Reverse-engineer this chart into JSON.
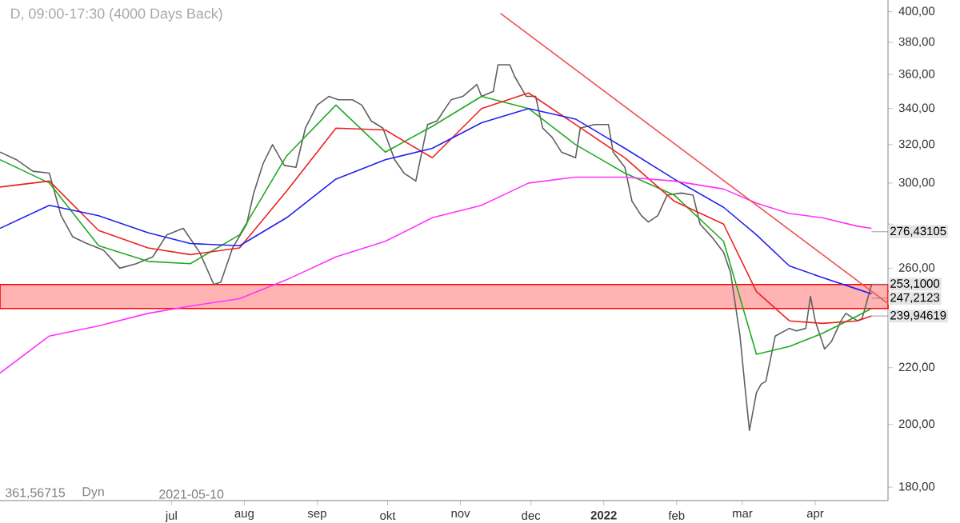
{
  "chart_data": {
    "type": "line",
    "title": "D, 09:00-17:30 (4000 Days Back)",
    "log": "y",
    "grid": false,
    "marker": "none",
    "line_style": "solid",
    "xlim": [
      "2021-04-19",
      "2022-05-02"
    ],
    "ylim": [
      176,
      408
    ],
    "xticks": [
      {
        "value": "2021-07-01",
        "label": "jul"
      },
      {
        "value": "2021-08-01",
        "label": "aug"
      },
      {
        "value": "2021-09-01",
        "label": "sep"
      },
      {
        "value": "2021-10-01",
        "label": "okt"
      },
      {
        "value": "2021-11-01",
        "label": "nov"
      },
      {
        "value": "2021-12-01",
        "label": "dec"
      },
      {
        "value": "2022-01-01",
        "label": "**2022**"
      },
      {
        "value": "2022-02-01",
        "label": "feb"
      },
      {
        "value": "2022-03-01",
        "label": "mar"
      },
      {
        "value": "2022-04-01",
        "label": "apr"
      }
    ],
    "yticks": [
      {
        "value": 180,
        "label": "180,00"
      },
      {
        "value": 200,
        "label": "200,00"
      },
      {
        "value": 220,
        "label": "220,00"
      },
      {
        "value": 240,
        "label": null
      },
      {
        "value": 260,
        "label": "260,00"
      },
      {
        "value": 280,
        "label": null
      },
      {
        "value": 300,
        "label": "300,00"
      },
      {
        "value": 320,
        "label": "320,00"
      },
      {
        "value": 340,
        "label": "340,00"
      },
      {
        "value": 360,
        "label": "360,00"
      },
      {
        "value": 380,
        "label": "380,00"
      },
      {
        "value": 400,
        "label": "400,00"
      }
    ],
    "bands": [
      {
        "axis": "y",
        "from": 243,
        "to": 253,
        "color": "#ffb3b3"
      }
    ],
    "series": [
      {
        "color": "#606060",
        "x": [
          "2021-04-19",
          "2021-04-26",
          "2021-05-03",
          "2021-05-10",
          "2021-05-15",
          "2021-05-20",
          "2021-05-26",
          "2021-06-02",
          "2021-06-09",
          "2021-06-16",
          "2021-06-23",
          "2021-06-29",
          "2021-07-06",
          "2021-07-13",
          "2021-07-19",
          "2021-07-22",
          "2021-07-27",
          "2021-08-02",
          "2021-08-05",
          "2021-08-09",
          "2021-08-13",
          "2021-08-18",
          "2021-08-23",
          "2021-08-27",
          "2021-09-01",
          "2021-09-06",
          "2021-09-10",
          "2021-09-16",
          "2021-09-20",
          "2021-09-24",
          "2021-09-29",
          "2021-10-04",
          "2021-10-08",
          "2021-10-13",
          "2021-10-18",
          "2021-10-22",
          "2021-10-28",
          "2021-11-02",
          "2021-11-08",
          "2021-11-10",
          "2021-11-15",
          "2021-11-17",
          "2021-11-22",
          "2021-11-24",
          "2021-11-29",
          "2021-12-03",
          "2021-12-06",
          "2021-12-10",
          "2021-12-14",
          "2021-12-20",
          "2021-12-22",
          "2021-12-28",
          "2022-01-03",
          "2022-01-05",
          "2022-01-10",
          "2022-01-13",
          "2022-01-17",
          "2022-01-20",
          "2022-01-24",
          "2022-01-28",
          "2022-02-03",
          "2022-02-08",
          "2022-02-11",
          "2022-02-16",
          "2022-02-21",
          "2022-02-24",
          "2022-02-28",
          "2022-03-02",
          "2022-03-04",
          "2022-03-07",
          "2022-03-09",
          "2022-03-11",
          "2022-03-15",
          "2022-03-21",
          "2022-03-24",
          "2022-03-28",
          "2022-03-30",
          "2022-04-01",
          "2022-04-05",
          "2022-04-08",
          "2022-04-12",
          "2022-04-14",
          "2022-04-19",
          "2022-04-21",
          "2022-04-25"
        ],
        "values": [
          316,
          312,
          306,
          305,
          284,
          274,
          271,
          268,
          260,
          262,
          265,
          275,
          278,
          267,
          253,
          254,
          269,
          280,
          295,
          310,
          320,
          309,
          308,
          329,
          342,
          347,
          345,
          345,
          342,
          333,
          329,
          312,
          305,
          301,
          331,
          333,
          345,
          347,
          354,
          347,
          350,
          366,
          366,
          359,
          347,
          347,
          329,
          324,
          316,
          313,
          329,
          331,
          331,
          316,
          308,
          291,
          284,
          281,
          284,
          294,
          295,
          294,
          280,
          274,
          267,
          258,
          232,
          214,
          198,
          211,
          214,
          215,
          232,
          235,
          234,
          235,
          248,
          238,
          227,
          230,
          238,
          241,
          238,
          239,
          253
        ]
      },
      {
        "color": "#22aa22",
        "x": [
          "2021-04-19",
          "2021-05-10",
          "2021-05-31",
          "2021-06-21",
          "2021-07-09",
          "2021-07-30",
          "2021-08-19",
          "2021-09-09",
          "2021-09-30",
          "2021-10-20",
          "2021-11-10",
          "2021-11-30",
          "2021-12-20",
          "2022-01-10",
          "2022-01-31",
          "2022-02-21",
          "2022-03-07",
          "2022-03-21",
          "2022-04-04",
          "2022-04-19",
          "2022-04-25"
        ],
        "values": [
          312,
          300,
          270,
          263,
          262,
          275,
          314,
          342,
          316,
          330,
          347,
          340,
          320,
          305,
          294,
          272,
          225,
          228,
          233,
          240,
          243
        ]
      },
      {
        "color": "#ee2222",
        "x": [
          "2021-04-19",
          "2021-05-10",
          "2021-05-31",
          "2021-06-21",
          "2021-07-09",
          "2021-07-30",
          "2021-08-19",
          "2021-09-09",
          "2021-09-30",
          "2021-10-20",
          "2021-11-10",
          "2021-11-30",
          "2021-12-20",
          "2022-01-10",
          "2022-01-31",
          "2022-02-21",
          "2022-03-07",
          "2022-03-21",
          "2022-04-04",
          "2022-04-19",
          "2022-04-25"
        ],
        "values": [
          298,
          301,
          277,
          269,
          266,
          269,
          296,
          329,
          328,
          313,
          340,
          349,
          331,
          313,
          291,
          280,
          250,
          238,
          237,
          238,
          240
        ]
      },
      {
        "color": "#2222ee",
        "x": [
          "2021-04-19",
          "2021-05-10",
          "2021-05-31",
          "2021-06-21",
          "2021-07-09",
          "2021-07-30",
          "2021-08-19",
          "2021-09-09",
          "2021-09-30",
          "2021-10-20",
          "2021-11-10",
          "2021-11-30",
          "2021-12-20",
          "2022-01-10",
          "2022-01-31",
          "2022-02-21",
          "2022-03-07",
          "2022-03-21",
          "2022-04-04",
          "2022-04-19",
          "2022-04-25"
        ],
        "values": [
          278,
          289,
          284,
          276,
          271,
          270,
          283,
          302,
          312,
          318,
          332,
          340,
          334,
          318,
          302,
          288,
          275,
          261,
          256,
          251,
          249
        ]
      },
      {
        "color": "#ff33ff",
        "x": [
          "2021-04-19",
          "2021-05-10",
          "2021-05-31",
          "2021-06-21",
          "2021-07-09",
          "2021-07-30",
          "2021-08-19",
          "2021-09-09",
          "2021-09-30",
          "2021-10-20",
          "2021-11-10",
          "2021-11-30",
          "2021-12-20",
          "2022-01-10",
          "2022-01-31",
          "2022-02-21",
          "2022-03-07",
          "2022-03-21",
          "2022-04-04",
          "2022-04-19",
          "2022-04-25"
        ],
        "values": [
          218,
          232,
          236,
          241,
          244,
          247,
          255,
          265,
          272,
          283,
          289,
          300,
          303,
          303,
          301,
          297,
          290,
          285,
          283,
          279,
          278
        ]
      },
      {
        "color": "#f05050",
        "x": [
          "2021-11-18",
          "2022-05-02"
        ],
        "values": [
          399,
          245
        ]
      }
    ],
    "annotations": [
      "361,56715",
      {
        "text": "276,43105",
        "x": "2022-04-25",
        "y": 276.43
      },
      {
        "text": "253,1000",
        "x": "2022-04-25",
        "y": 253.1
      },
      {
        "text": "247,2123",
        "x": "2022-04-25",
        "y": 247.21
      },
      {
        "text": "239,94619",
        "x": "2022-04-25",
        "y": 239.95
      },
      "Dyn",
      "2021-05-10"
    ]
  }
}
